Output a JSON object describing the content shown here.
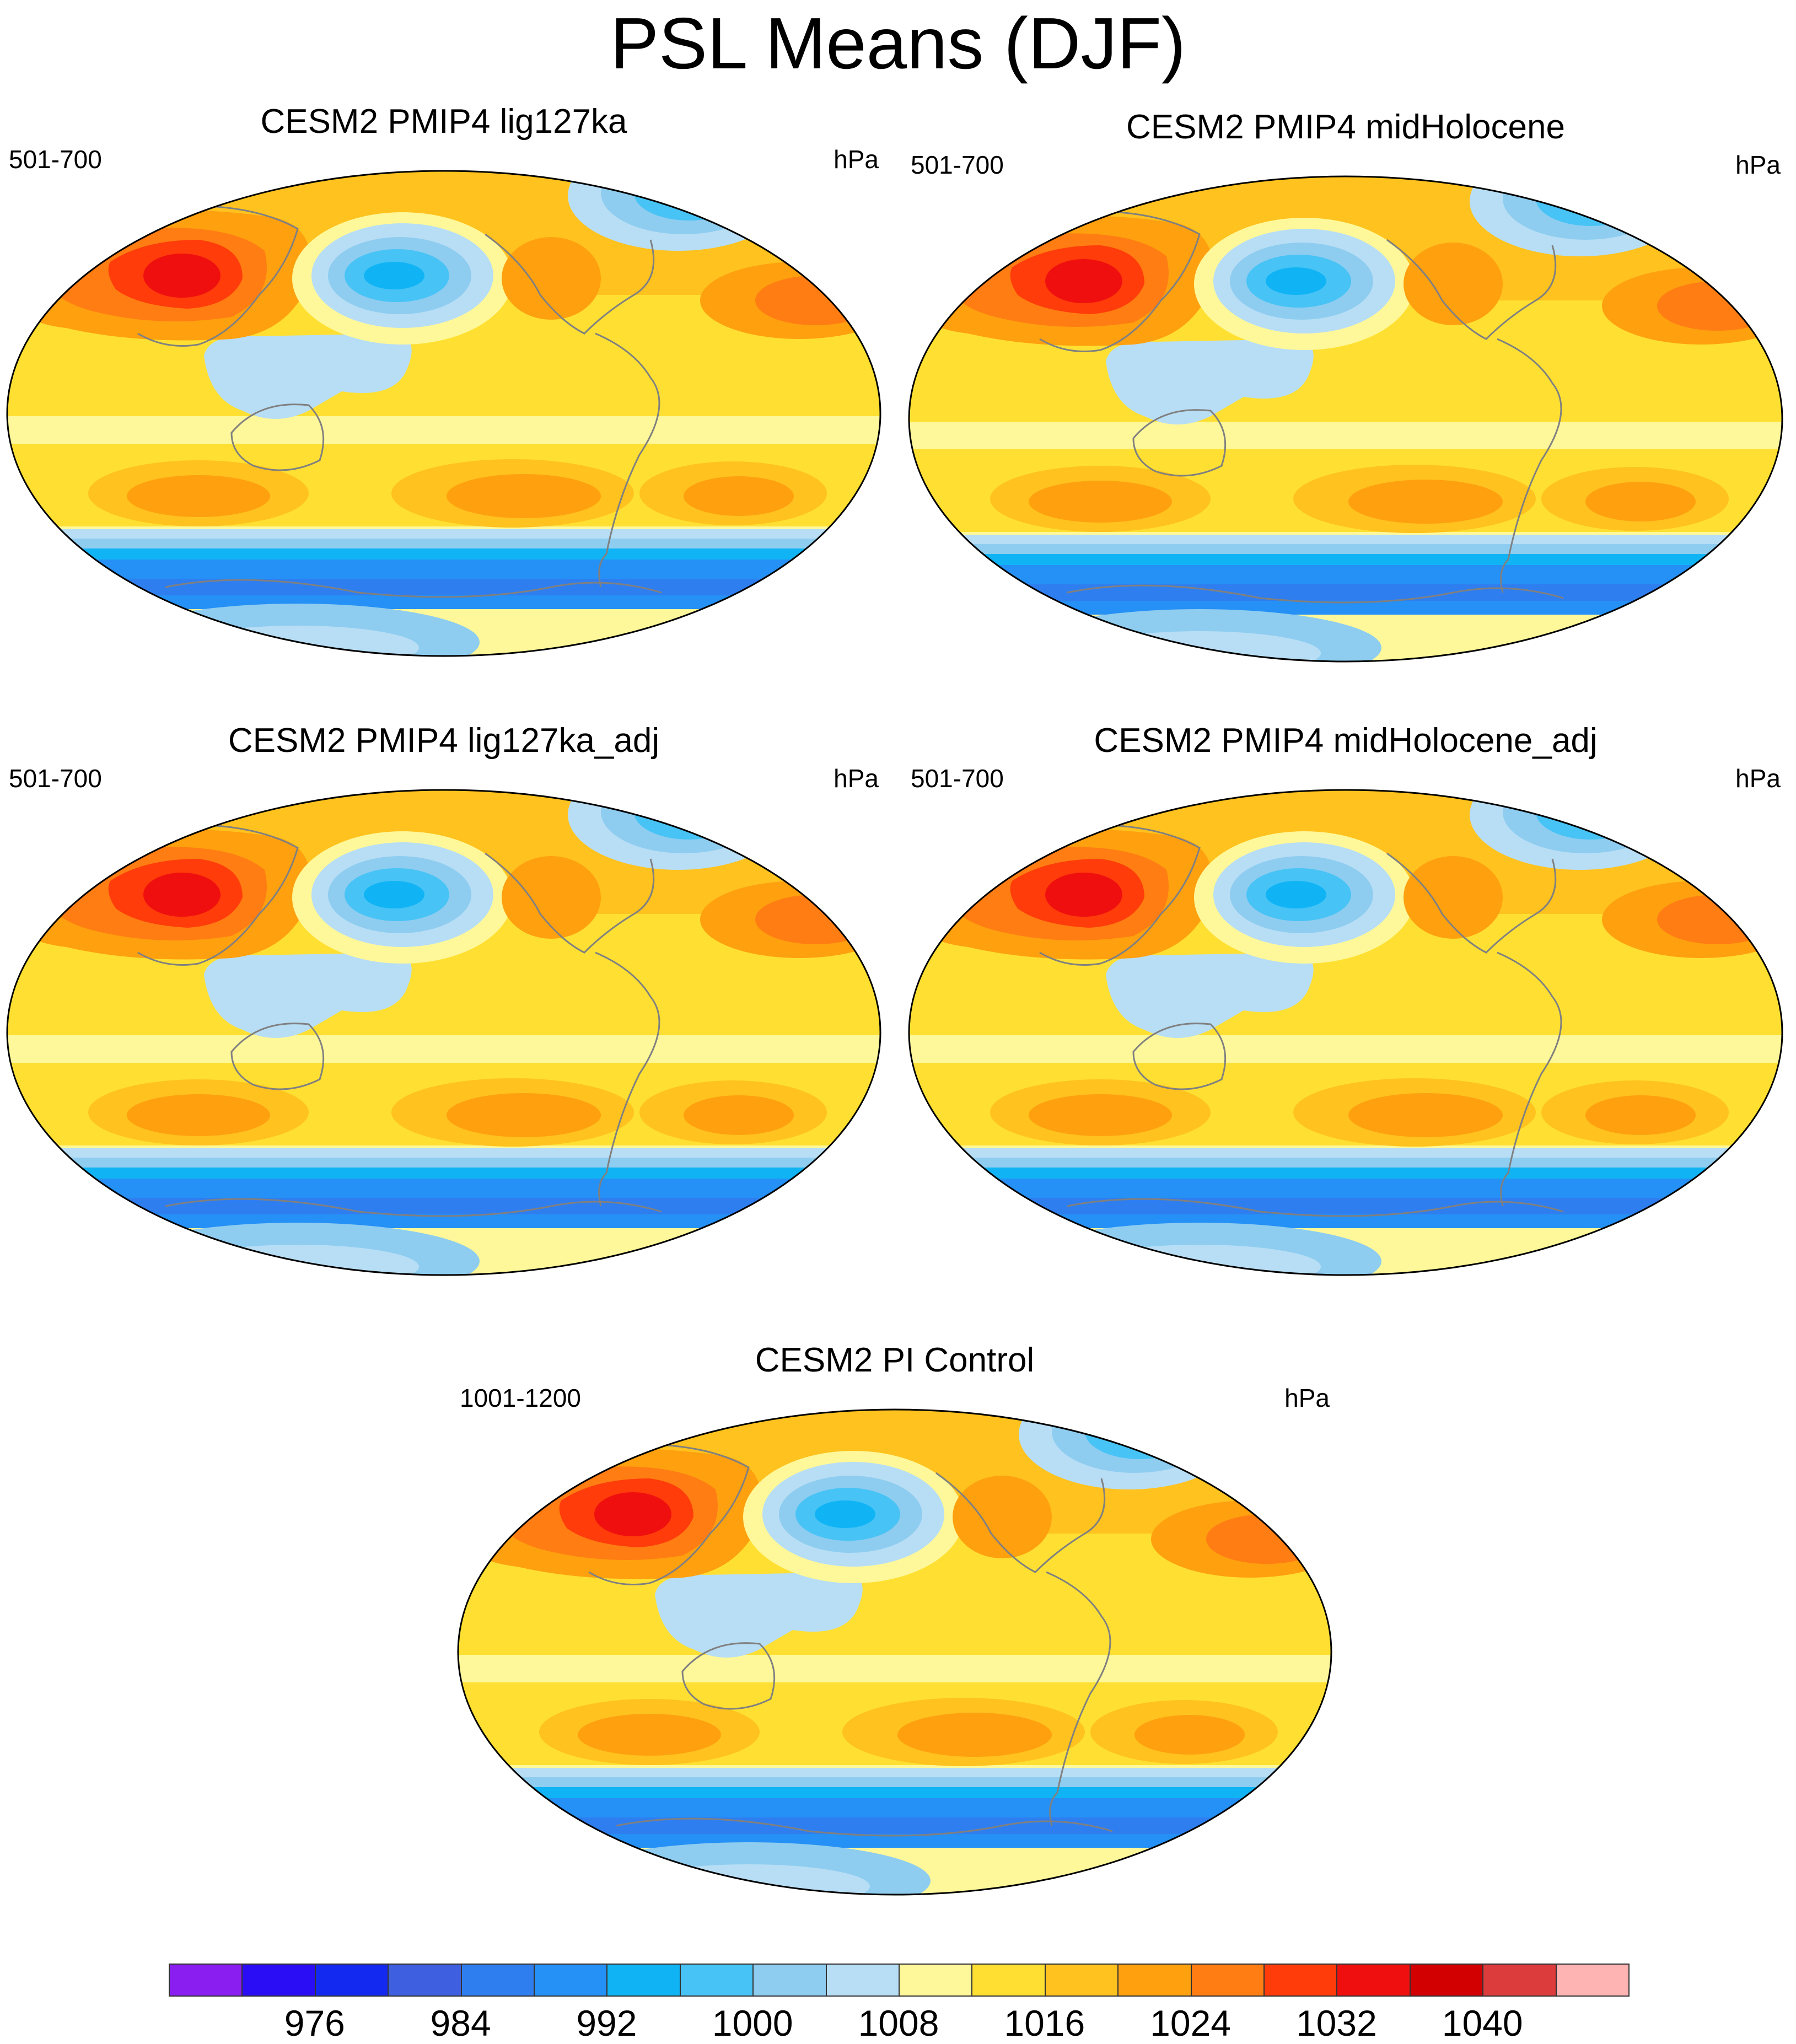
{
  "figure": {
    "title": "PSL Means (DJF)"
  },
  "panels": [
    {
      "title": "CESM2 PMIP4 lig127ka",
      "years": "501-700",
      "units": "hPa"
    },
    {
      "title": "CESM2 PMIP4 midHolocene",
      "years": "501-700",
      "units": "hPa"
    },
    {
      "title": "CESM2 PMIP4 lig127ka_adj",
      "years": "501-700",
      "units": "hPa"
    },
    {
      "title": "CESM2 PMIP4 midHolocene_adj",
      "years": "501-700",
      "units": "hPa"
    },
    {
      "title": "CESM2 PI Control",
      "years": "1001-1200",
      "units": "hPa"
    }
  ],
  "colorbar": {
    "colors": [
      "#8a1ef0",
      "#2a0df5",
      "#1429f0",
      "#3e5fe0",
      "#2f7ef0",
      "#2590f5",
      "#10b4f5",
      "#47c3f5",
      "#8ecdf0",
      "#b8def5",
      "#fff89a",
      "#ffe032",
      "#ffc21e",
      "#ffa00f",
      "#ff7d12",
      "#ff3c0a",
      "#f00f0f",
      "#d20000",
      "#dc3c3c",
      "#ffb4b4"
    ],
    "tick_labels": [
      "976",
      "984",
      "992",
      "1000",
      "1008",
      "1016",
      "1024",
      "1032",
      "1040"
    ],
    "tick_positions": [
      2,
      4,
      6,
      8,
      10,
      12,
      14,
      16,
      18
    ]
  }
}
